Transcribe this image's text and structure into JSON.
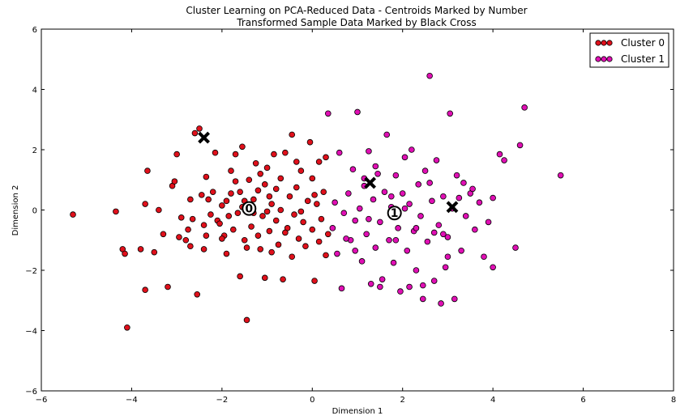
{
  "chart_data": {
    "type": "scatter",
    "title": [
      "Cluster Learning on PCA-Reduced Data - Centroids Marked by Number",
      "Transformed Sample Data Marked by Black Cross"
    ],
    "xlabel": "Dimension 1",
    "ylabel": "Dimension 2",
    "xlim": [
      -6,
      8
    ],
    "ylim": [
      -6,
      6
    ],
    "xticks": [
      -6,
      -4,
      -2,
      0,
      2,
      4,
      6,
      8
    ],
    "yticks": [
      -6,
      -4,
      -2,
      0,
      2,
      4,
      6
    ],
    "grid": false,
    "legend_position": "top-right",
    "series": [
      {
        "name": "Cluster 0",
        "color": "#e0101b",
        "points": [
          [
            -5.3,
            -0.15
          ],
          [
            -4.35,
            -0.05
          ],
          [
            -4.2,
            -1.3
          ],
          [
            -4.15,
            -1.45
          ],
          [
            -4.1,
            -3.9
          ],
          [
            -3.8,
            -1.3
          ],
          [
            -3.7,
            -2.65
          ],
          [
            -3.7,
            0.2
          ],
          [
            -3.65,
            1.3
          ],
          [
            -3.5,
            -1.4
          ],
          [
            -3.4,
            0.0
          ],
          [
            -3.3,
            -0.8
          ],
          [
            -3.2,
            -2.55
          ],
          [
            -3.1,
            0.8
          ],
          [
            -3.05,
            0.95
          ],
          [
            -3.0,
            1.85
          ],
          [
            -2.95,
            -0.9
          ],
          [
            -2.9,
            -0.25
          ],
          [
            -2.8,
            -1.0
          ],
          [
            -2.75,
            -0.65
          ],
          [
            -2.7,
            -1.2
          ],
          [
            -2.7,
            0.35
          ],
          [
            -2.65,
            -0.3
          ],
          [
            -2.6,
            2.55
          ],
          [
            -2.55,
            -2.8
          ],
          [
            -2.5,
            2.7
          ],
          [
            -2.45,
            0.5
          ],
          [
            -2.4,
            -0.5
          ],
          [
            -2.4,
            -1.3
          ],
          [
            -2.35,
            1.1
          ],
          [
            -2.3,
            0.35
          ],
          [
            -2.25,
            -0.15
          ],
          [
            -2.2,
            0.6
          ],
          [
            -2.15,
            1.9
          ],
          [
            -2.1,
            -0.35
          ],
          [
            -2.05,
            -0.45
          ],
          [
            -2.0,
            0.15
          ],
          [
            -1.95,
            -0.85
          ],
          [
            -1.9,
            -1.45
          ],
          [
            -1.85,
            -0.2
          ],
          [
            -1.8,
            0.55
          ],
          [
            -1.8,
            1.3
          ],
          [
            -1.75,
            -0.65
          ],
          [
            -1.7,
            0.95
          ],
          [
            -1.7,
            1.85
          ],
          [
            -1.65,
            -0.1
          ],
          [
            -1.6,
            -2.2
          ],
          [
            -1.6,
            0.6
          ],
          [
            -1.55,
            2.1
          ],
          [
            -1.5,
            -1.0
          ],
          [
            -1.5,
            0.3
          ],
          [
            -1.45,
            -1.25
          ],
          [
            -1.45,
            -3.65
          ],
          [
            -1.4,
            1.0
          ],
          [
            -1.35,
            -0.55
          ],
          [
            -1.3,
            0.35
          ],
          [
            -1.25,
            1.55
          ],
          [
            -1.2,
            -0.85
          ],
          [
            -1.2,
            0.65
          ],
          [
            -1.15,
            -1.3
          ],
          [
            -1.1,
            -0.2
          ],
          [
            -1.05,
            0.85
          ],
          [
            -1.05,
            -2.25
          ],
          [
            -1.0,
            1.4
          ],
          [
            -0.95,
            -0.7
          ],
          [
            -0.9,
            0.2
          ],
          [
            -0.9,
            -1.4
          ],
          [
            -0.85,
            1.85
          ],
          [
            -0.8,
            -0.35
          ],
          [
            -0.8,
            0.7
          ],
          [
            -0.75,
            -1.15
          ],
          [
            -0.7,
            0.0
          ],
          [
            -0.7,
            1.05
          ],
          [
            -0.65,
            -2.3
          ],
          [
            -0.6,
            1.9
          ],
          [
            -0.55,
            -0.6
          ],
          [
            -0.5,
            0.45
          ],
          [
            -0.45,
            -1.55
          ],
          [
            -0.45,
            2.5
          ],
          [
            -0.4,
            -0.15
          ],
          [
            -0.35,
            0.75
          ],
          [
            -0.3,
            -0.95
          ],
          [
            -0.25,
            1.3
          ],
          [
            -0.2,
            -0.4
          ],
          [
            -0.15,
            -1.2
          ],
          [
            -0.1,
            0.3
          ],
          [
            -0.05,
            2.25
          ],
          [
            0.0,
            -0.65
          ],
          [
            0.0,
            1.05
          ],
          [
            0.05,
            -2.35
          ],
          [
            0.1,
            0.2
          ],
          [
            0.15,
            -1.05
          ],
          [
            0.15,
            1.6
          ],
          [
            0.2,
            -0.3
          ],
          [
            0.25,
            0.6
          ],
          [
            0.3,
            -1.5
          ],
          [
            0.3,
            1.75
          ],
          [
            0.35,
            -0.8
          ],
          [
            -2.0,
            -0.95
          ],
          [
            -1.3,
            -0.1
          ],
          [
            -1.9,
            0.3
          ],
          [
            -1.0,
            -0.05
          ],
          [
            -0.6,
            -0.75
          ],
          [
            0.05,
            0.5
          ],
          [
            -0.25,
            -0.05
          ],
          [
            -1.55,
            0.1
          ],
          [
            -2.35,
            -0.85
          ],
          [
            -0.95,
            0.45
          ],
          [
            -0.35,
            1.6
          ],
          [
            -1.15,
            1.2
          ]
        ]
      },
      {
        "name": "Cluster 1",
        "color": "#e00fb4",
        "points": [
          [
            0.35,
            3.2
          ],
          [
            0.45,
            -0.6
          ],
          [
            0.5,
            0.25
          ],
          [
            0.55,
            -1.45
          ],
          [
            0.6,
            1.9
          ],
          [
            0.65,
            -2.6
          ],
          [
            0.7,
            -0.1
          ],
          [
            0.8,
            0.55
          ],
          [
            0.85,
            -1.0
          ],
          [
            0.9,
            1.35
          ],
          [
            0.95,
            -0.35
          ],
          [
            1.0,
            3.25
          ],
          [
            1.05,
            0.05
          ],
          [
            1.1,
            -1.7
          ],
          [
            1.15,
            0.8
          ],
          [
            1.2,
            -0.8
          ],
          [
            1.25,
            1.95
          ],
          [
            1.3,
            -2.45
          ],
          [
            1.35,
            0.35
          ],
          [
            1.4,
            -1.25
          ],
          [
            1.45,
            1.2
          ],
          [
            1.5,
            -0.4
          ],
          [
            1.55,
            -2.3
          ],
          [
            1.6,
            0.6
          ],
          [
            1.65,
            2.5
          ],
          [
            1.7,
            -1.0
          ],
          [
            1.75,
            0.1
          ],
          [
            1.8,
            -1.75
          ],
          [
            1.85,
            1.15
          ],
          [
            1.9,
            -0.6
          ],
          [
            1.95,
            -2.7
          ],
          [
            2.0,
            0.55
          ],
          [
            2.05,
            1.75
          ],
          [
            2.1,
            -1.35
          ],
          [
            2.15,
            0.2
          ],
          [
            2.2,
            2.0
          ],
          [
            2.25,
            -0.7
          ],
          [
            2.3,
            -2.0
          ],
          [
            2.35,
            0.85
          ],
          [
            2.4,
            -0.2
          ],
          [
            2.45,
            -2.95
          ],
          [
            2.5,
            1.3
          ],
          [
            2.55,
            -1.05
          ],
          [
            2.6,
            4.45
          ],
          [
            2.65,
            0.3
          ],
          [
            2.7,
            -2.35
          ],
          [
            2.75,
            1.65
          ],
          [
            2.8,
            -0.5
          ],
          [
            2.85,
            -3.1
          ],
          [
            2.9,
            0.45
          ],
          [
            2.95,
            -1.9
          ],
          [
            3.0,
            -0.9
          ],
          [
            3.05,
            3.2
          ],
          [
            3.1,
            0.05
          ],
          [
            3.15,
            -2.95
          ],
          [
            3.2,
            1.15
          ],
          [
            3.3,
            -1.35
          ],
          [
            3.35,
            0.9
          ],
          [
            3.4,
            -0.2
          ],
          [
            3.5,
            0.55
          ],
          [
            3.6,
            -0.65
          ],
          [
            3.7,
            0.25
          ],
          [
            3.8,
            -1.55
          ],
          [
            3.9,
            -0.4
          ],
          [
            4.0,
            0.4
          ],
          [
            4.0,
            -1.9
          ],
          [
            4.15,
            1.85
          ],
          [
            4.25,
            1.65
          ],
          [
            4.5,
            -1.25
          ],
          [
            4.6,
            2.15
          ],
          [
            4.7,
            3.4
          ],
          [
            5.5,
            1.15
          ],
          [
            0.95,
            -1.35
          ],
          [
            1.15,
            1.05
          ],
          [
            1.5,
            -2.55
          ],
          [
            2.15,
            -2.55
          ],
          [
            2.45,
            -2.5
          ],
          [
            2.7,
            -0.75
          ],
          [
            3.0,
            -1.55
          ],
          [
            3.25,
            0.4
          ],
          [
            1.4,
            1.45
          ],
          [
            1.75,
            0.45
          ],
          [
            2.05,
            0.05
          ],
          [
            2.3,
            -0.6
          ],
          [
            2.6,
            0.9
          ],
          [
            3.55,
            0.7
          ],
          [
            1.25,
            -0.3
          ],
          [
            0.75,
            -0.95
          ],
          [
            1.85,
            -1.0
          ],
          [
            2.9,
            -0.8
          ]
        ]
      }
    ],
    "centroids": [
      {
        "label": "0",
        "x": -1.4,
        "y": 0.05
      },
      {
        "label": "1",
        "x": 1.82,
        "y": -0.1
      }
    ],
    "samples": [
      {
        "x": -2.4,
        "y": 2.4
      },
      {
        "x": 1.28,
        "y": 0.9
      },
      {
        "x": 3.1,
        "y": 0.1
      }
    ]
  }
}
